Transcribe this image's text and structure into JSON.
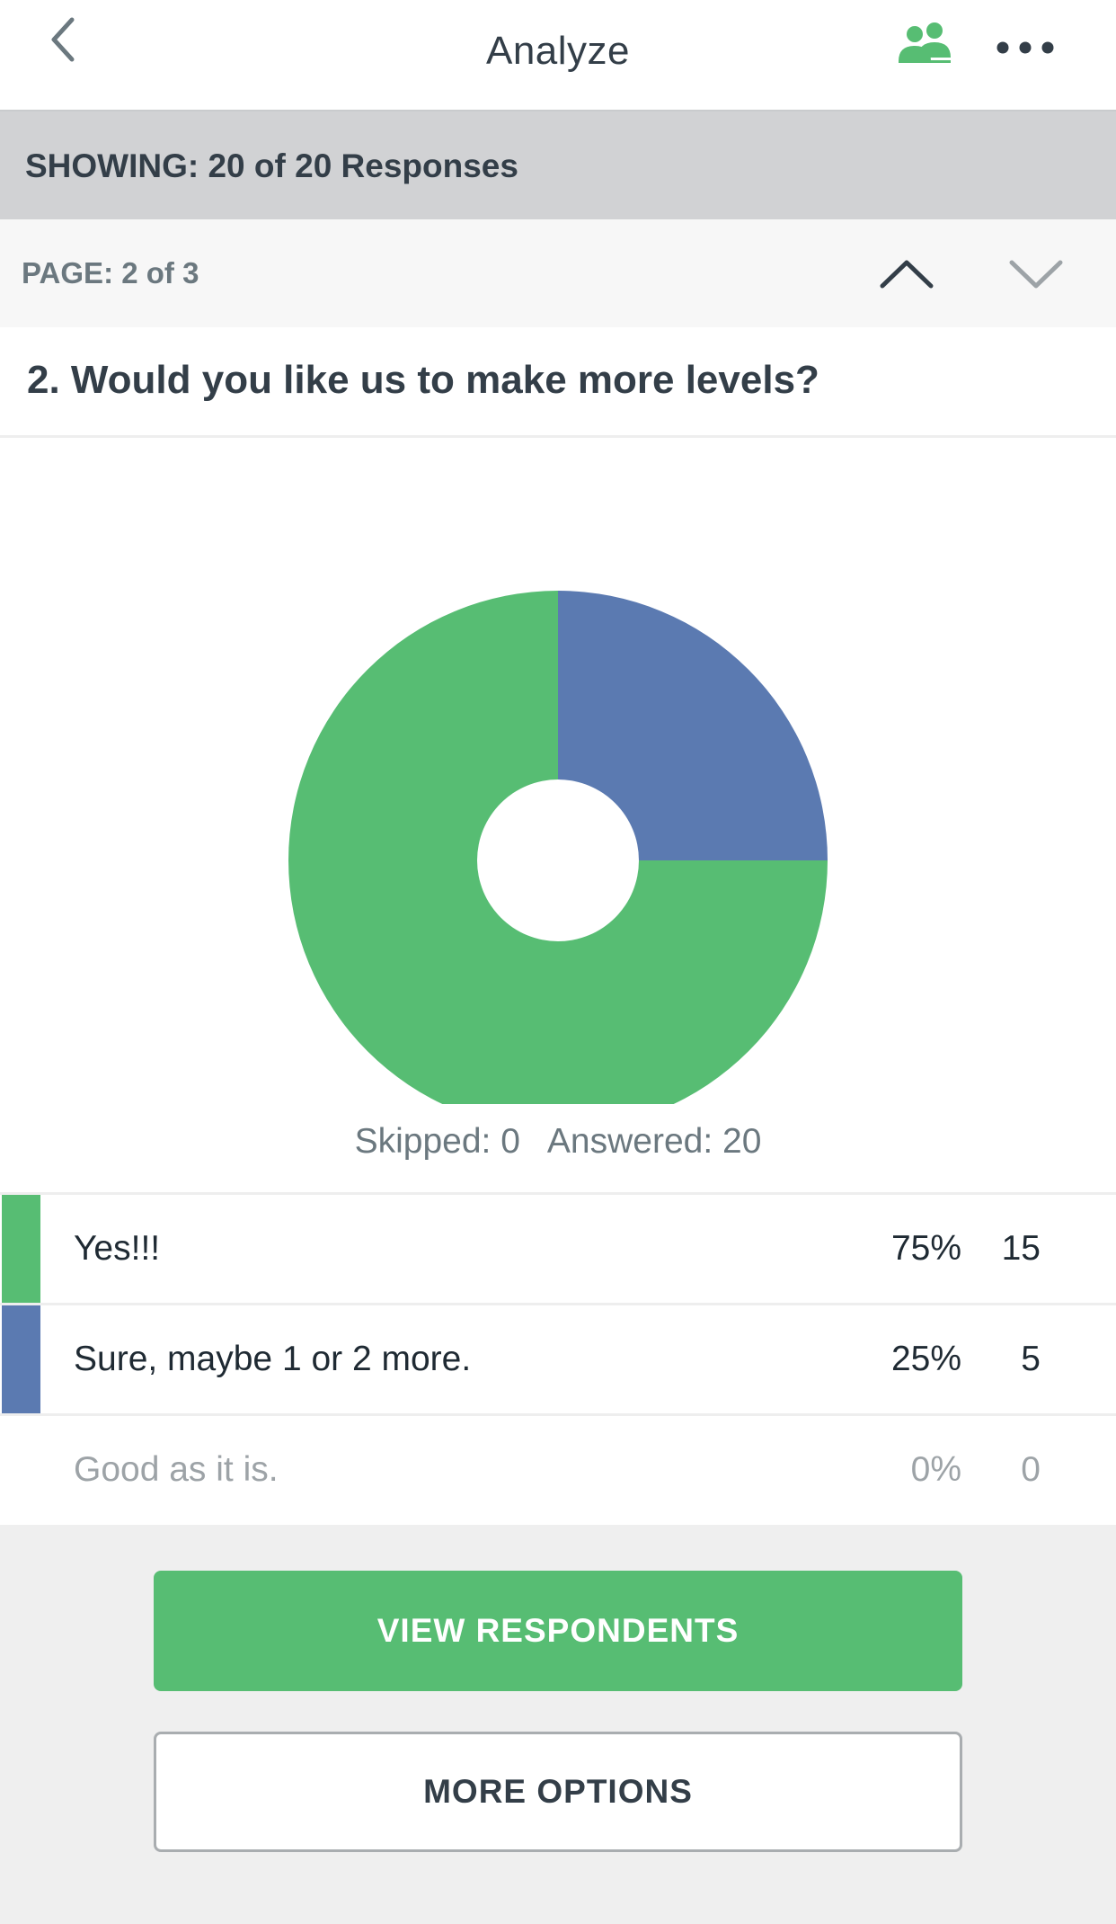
{
  "header": {
    "title": "Analyze",
    "back_icon": "chevron-left-icon",
    "people_icon": "people-icon",
    "more_icon": "more-dots-icon",
    "accent_color": "#57bd73"
  },
  "showing": {
    "text": "SHOWING: 20 of 20 Responses"
  },
  "pager": {
    "label": "PAGE: 2 of 3",
    "up_icon": "chevron-up-icon",
    "down_icon": "chevron-down-icon"
  },
  "question": {
    "text": "2. Would you like us to make more levels?"
  },
  "stats": {
    "skipped": "Skipped: 0",
    "answered": "Answered: 20"
  },
  "chart_data": {
    "type": "pie",
    "donut": true,
    "total": 20,
    "slices": [
      {
        "label": "Yes!!!",
        "percent": 75,
        "count": 15,
        "color": "#57bd73"
      },
      {
        "label": "Sure, maybe 1 or 2 more.",
        "percent": 25,
        "count": 5,
        "color": "#5b7ab1"
      },
      {
        "label": "Good as it is.",
        "percent": 0,
        "count": 0,
        "color": "#9da3a7"
      }
    ]
  },
  "rows": [
    {
      "label": "Yes!!!",
      "percent": "75%",
      "count": "15",
      "color": "#57bd73"
    },
    {
      "label": "Sure, maybe 1 or 2 more.",
      "percent": "25%",
      "count": "5",
      "color": "#5b7ab1"
    },
    {
      "label": "Good as it is.",
      "percent": "0%",
      "count": "0",
      "color": ""
    }
  ],
  "buttons": {
    "view_respondents": "VIEW RESPONDENTS",
    "more_options": "MORE OPTIONS"
  }
}
